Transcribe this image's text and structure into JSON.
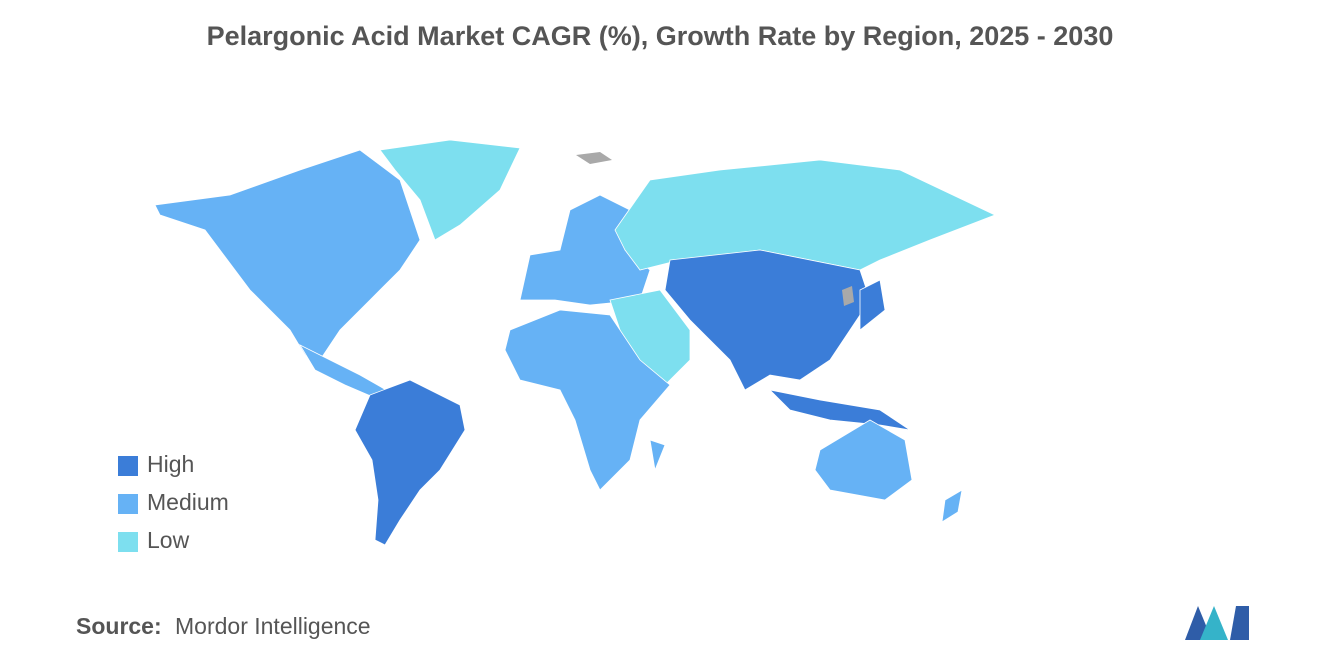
{
  "title": "Pelargonic Acid Market CAGR (%), Growth Rate by Region, 2025 - 2030",
  "legend": [
    {
      "label": "High",
      "color": "#3b7dd8"
    },
    {
      "label": "Medium",
      "color": "#66b2f5"
    },
    {
      "label": "Low",
      "color": "#7ddfef"
    }
  ],
  "source": {
    "label": "Source:",
    "text": "Mordor Intelligence"
  }
}
